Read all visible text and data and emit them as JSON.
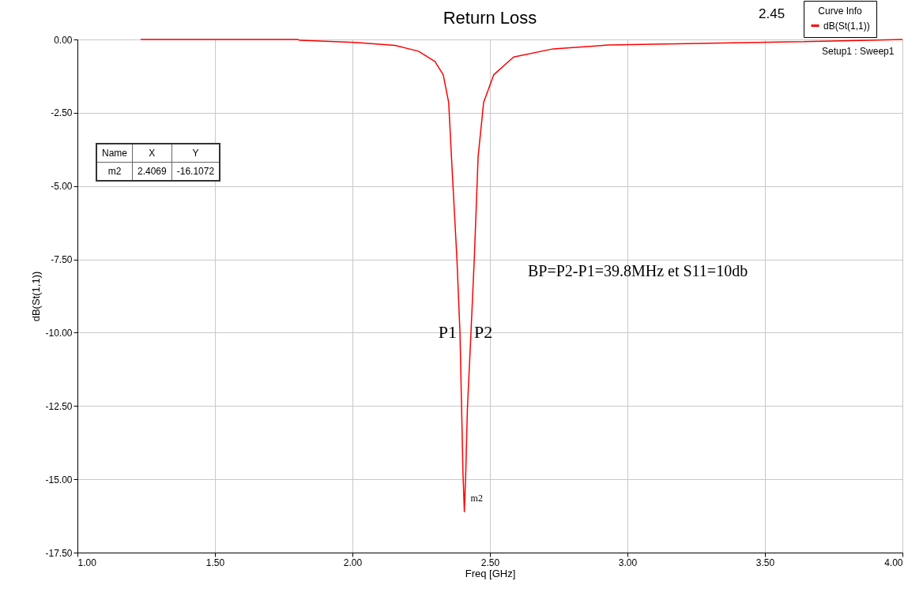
{
  "chart_data": {
    "type": "line",
    "title": "Return Loss",
    "xlabel": "Freq [GHz]",
    "ylabel": "dB(St(1,1))",
    "legend_title": "Curve Info",
    "series": [
      {
        "name": "dB(St(1,1))",
        "color": "#ff0000",
        "x": [
          1.23,
          1.8,
          1.81,
          2.01,
          2.155,
          2.24,
          2.3,
          2.33,
          2.35,
          2.36,
          2.38,
          2.391,
          2.397,
          2.402,
          2.4069,
          2.412,
          2.418,
          2.431,
          2.443,
          2.457,
          2.477,
          2.514,
          2.586,
          2.73,
          2.93,
          3.3,
          3.59,
          3.88,
          4.0
        ],
        "values": [
          0,
          0,
          -0.03,
          -0.1,
          -0.2,
          -0.4,
          -0.75,
          -1.2,
          -2.15,
          -4,
          -7.5,
          -10,
          -12.6,
          -14.8,
          -16.1072,
          -14.8,
          -12.6,
          -10,
          -7.5,
          -4,
          -2.15,
          -1.2,
          -0.6,
          -0.32,
          -0.19,
          -0.13,
          -0.08,
          -0.03,
          0
        ]
      }
    ],
    "xlim": [
      1,
      4
    ],
    "ylim": [
      -17.5,
      0
    ],
    "xticks": [
      {
        "value": 1,
        "label": "1.00"
      },
      {
        "value": 1.5,
        "label": "1.50"
      },
      {
        "value": 2,
        "label": "2.00"
      },
      {
        "value": 2.5,
        "label": "2.50"
      },
      {
        "value": 3,
        "label": "3.00"
      },
      {
        "value": 3.5,
        "label": "3.50"
      },
      {
        "value": 4,
        "label": "4.00"
      }
    ],
    "yticks": [
      {
        "value": 0,
        "label": "0.00"
      },
      {
        "value": -2.5,
        "label": "-2.50"
      },
      {
        "value": -5,
        "label": "-5.00"
      },
      {
        "value": -7.5,
        "label": "-7.50"
      },
      {
        "value": -10,
        "label": "-10.00"
      },
      {
        "value": -12.5,
        "label": "-12.50"
      },
      {
        "value": -15,
        "label": "-15.00"
      },
      {
        "value": -17.5,
        "label": "-17.50"
      }
    ],
    "grid": true,
    "legend": "top right",
    "marker": "none",
    "line_style": "solid",
    "annotations": [
      "2.45",
      "Setup1 : Sweep1",
      "Name",
      "X",
      "Y",
      "m2",
      "2.4069",
      "-16.1072",
      "BP=P2-P1=39.8MHz et S11=10db",
      {
        "text": "P1",
        "x": 2.391,
        "y": -10
      },
      {
        "text": "P2",
        "x": 2.431,
        "y": -10
      },
      {
        "text": "m2",
        "x": 2.4069,
        "y": -16.1072
      }
    ]
  }
}
